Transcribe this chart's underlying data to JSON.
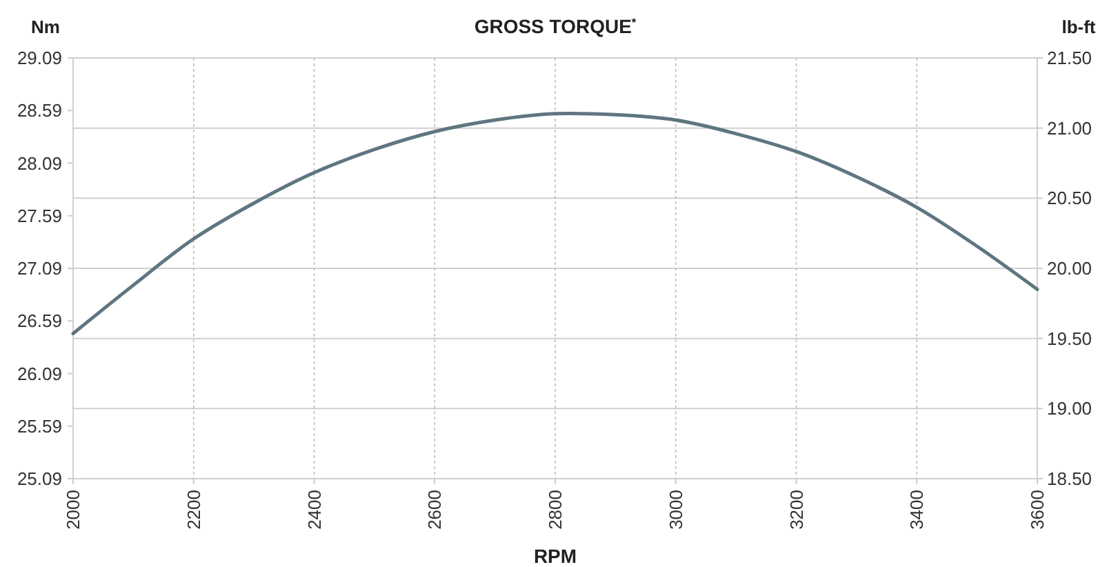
{
  "chart_data": {
    "type": "line",
    "title": "GROSS TORQUE$^{*}$",
    "xlabel": "RPM",
    "ylabel": "Nm",
    "y2label": "lb-ft",
    "x": [
      2000,
      2100,
      2200,
      2300,
      2400,
      2500,
      2600,
      2700,
      2800,
      2900,
      3000,
      3100,
      3200,
      3300,
      3400,
      3500,
      3600
    ],
    "series": [
      {
        "color": "#5f7680",
        "values": [
          26.47,
          26.93,
          27.37,
          27.71,
          28.0,
          28.22,
          28.39,
          28.5,
          28.56,
          28.55,
          28.5,
          28.37,
          28.2,
          27.96,
          27.67,
          27.3,
          26.89
        ]
      }
    ],
    "xlim": [
      2000,
      3600
    ],
    "xticks": [
      2000,
      2200,
      2400,
      2600,
      2800,
      3000,
      3200,
      3400,
      3600
    ],
    "ylim": [
      25.09,
      29.09
    ],
    "yticks": [
      25.09,
      25.59,
      26.09,
      26.59,
      27.09,
      27.59,
      28.09,
      28.59,
      29.09
    ],
    "y2lim": [
      18.5,
      21.5
    ],
    "y2ticks": [
      {
        "value": 18.5,
        "label": "18.50"
      },
      {
        "value": 19,
        "label": "19.00"
      },
      {
        "value": 19.5,
        "label": "19.50"
      },
      {
        "value": 20,
        "label": "20.00"
      },
      {
        "value": 20.5,
        "label": "20.50"
      },
      {
        "value": 21,
        "label": "21.00"
      },
      {
        "value": 21.5,
        "label": "21.50"
      }
    ],
    "grid": true,
    "marker": "none",
    "line_style": "solid"
  }
}
